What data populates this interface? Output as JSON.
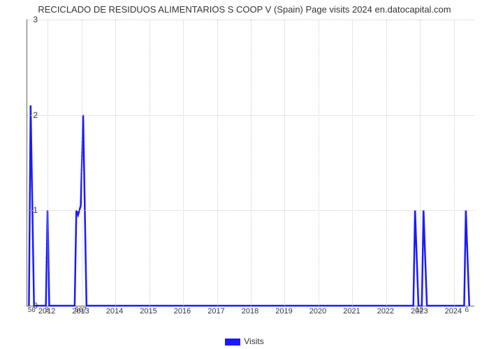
{
  "chart": {
    "type": "line",
    "title": "RECICLADO DE RESIDUOS ALIMENTARIOS S COOP V (Spain) Page visits 2024 en.datocapital.com",
    "title_fontsize": 13,
    "background_color": "#ffffff",
    "grid_color": "#cccccc",
    "axis_color": "#666666",
    "xlim": [
      2011.4,
      2024.6
    ],
    "ylim": [
      0,
      3
    ],
    "ytick_step": 1,
    "yticks": [
      0,
      1,
      2,
      3
    ],
    "xticks": [
      2012,
      2013,
      2014,
      2015,
      2016,
      2017,
      2018,
      2019,
      2020,
      2021,
      2022,
      2023,
      2024
    ],
    "data_labels": [
      {
        "x": 2011.55,
        "y_below": "56"
      },
      {
        "x": 2012.0,
        "y_below": "3"
      },
      {
        "x": 2013.0,
        "y_below": "567"
      },
      {
        "x": 2023.0,
        "y_below": "12"
      },
      {
        "x": 2024.4,
        "y_below": "6"
      }
    ],
    "series": {
      "name": "Visits",
      "color": "#1a1aff",
      "line_width": 2.5,
      "points": [
        {
          "x": 2011.45,
          "y": 0.0
        },
        {
          "x": 2011.5,
          "y": 2.1
        },
        {
          "x": 2011.6,
          "y": 0.0
        },
        {
          "x": 2011.95,
          "y": 0.0
        },
        {
          "x": 2012.0,
          "y": 1.0
        },
        {
          "x": 2012.05,
          "y": 0.0
        },
        {
          "x": 2012.8,
          "y": 0.0
        },
        {
          "x": 2012.85,
          "y": 1.0
        },
        {
          "x": 2012.9,
          "y": 0.95
        },
        {
          "x": 2012.98,
          "y": 1.05
        },
        {
          "x": 2013.05,
          "y": 2.0
        },
        {
          "x": 2013.15,
          "y": 0.0
        },
        {
          "x": 2022.8,
          "y": 0.0
        },
        {
          "x": 2022.85,
          "y": 1.0
        },
        {
          "x": 2022.95,
          "y": 0.0
        },
        {
          "x": 2023.05,
          "y": 0.0
        },
        {
          "x": 2023.1,
          "y": 1.0
        },
        {
          "x": 2023.2,
          "y": 0.0
        },
        {
          "x": 2024.3,
          "y": 0.0
        },
        {
          "x": 2024.35,
          "y": 1.0
        },
        {
          "x": 2024.45,
          "y": 0.0
        }
      ]
    },
    "legend": {
      "label": "Visits",
      "color": "#1a1aff"
    }
  }
}
